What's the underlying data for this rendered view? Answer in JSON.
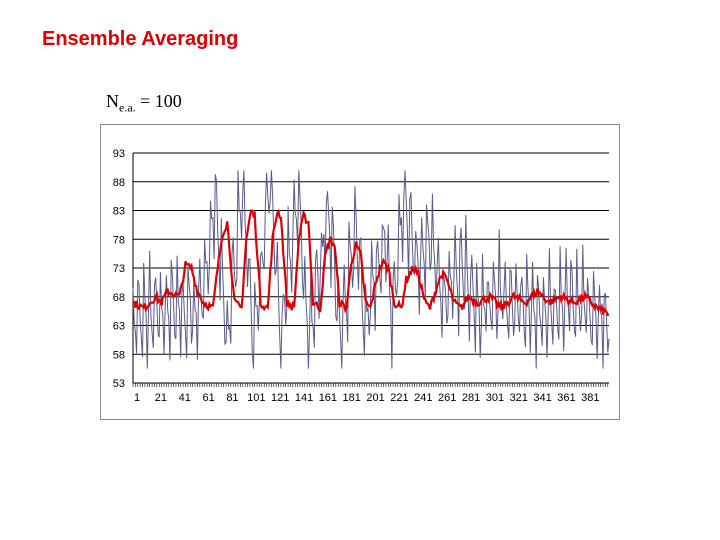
{
  "slide": {
    "title": "Ensemble Averaging",
    "subtitle_main": "N",
    "subtitle_sub": "e.a.",
    "subtitle_tail": " = 100"
  },
  "colors": {
    "title": "#e00000",
    "raw_series": "#5a5a8c",
    "averaged_series": "#dd0000",
    "gridline": "#000000"
  },
  "chart_data": {
    "type": "line",
    "title": "",
    "xlabel": "",
    "ylabel": "",
    "ylim": [
      53,
      93
    ],
    "y_ticks": [
      "93",
      "88",
      "83",
      "78",
      "73",
      "68",
      "63",
      "58",
      "53"
    ],
    "x_tick_labels": [
      "1",
      "21",
      "41",
      "61",
      "81",
      "101",
      "121",
      "141",
      "161",
      "181",
      "201",
      "221",
      "241",
      "261",
      "281",
      "301",
      "321",
      "341",
      "361",
      "381"
    ],
    "x_count": 400,
    "grid": true,
    "legend": "none",
    "series": [
      {
        "name": "raw",
        "description_values": "single noisy sweep, y range approx 56-89",
        "anchor_x": [
          1,
          30,
          60,
          70,
          80,
          93,
          102,
          116,
          125,
          140,
          148,
          165,
          175,
          188,
          195,
          212,
          218,
          228,
          240,
          250,
          262,
          275,
          290,
          310,
          340,
          370,
          400
        ],
        "anchor_y": [
          64,
          66,
          67,
          86,
          60,
          88,
          59,
          89,
          62,
          86,
          60,
          84,
          62,
          80,
          63,
          79,
          64,
          85,
          73,
          79,
          67,
          74,
          66,
          68,
          66,
          67,
          64
        ]
      },
      {
        "name": "ensemble average",
        "anchor_x": [
          1,
          10,
          20,
          25,
          30,
          40,
          45,
          50,
          55,
          60,
          68,
          72,
          76,
          80,
          86,
          92,
          96,
          100,
          103,
          108,
          114,
          118,
          122,
          125,
          130,
          136,
          140,
          144,
          148,
          152,
          158,
          162,
          166,
          170,
          174,
          180,
          184,
          188,
          192,
          196,
          200,
          205,
          210,
          215,
          220,
          226,
          230,
          236,
          240,
          246,
          250,
          256,
          260,
          264,
          270,
          276,
          282,
          290,
          300,
          310,
          320,
          330,
          340,
          350,
          360,
          370,
          380,
          390,
          400
        ],
        "anchor_y": [
          67,
          66,
          68,
          67,
          69,
          68,
          73.5,
          73,
          69,
          67,
          66,
          73,
          79,
          81,
          67,
          66,
          78,
          83,
          82,
          67,
          66,
          78,
          83,
          82,
          67,
          66,
          78,
          82,
          81,
          67,
          66,
          75,
          78,
          77,
          67,
          66,
          74,
          77,
          75,
          67,
          66,
          71,
          74,
          73,
          67,
          66,
          71,
          73,
          72,
          67,
          66,
          70,
          72,
          71,
          67,
          66,
          68,
          67,
          68,
          66,
          68,
          67,
          69,
          67,
          68,
          67,
          68,
          66,
          65
        ]
      }
    ]
  }
}
